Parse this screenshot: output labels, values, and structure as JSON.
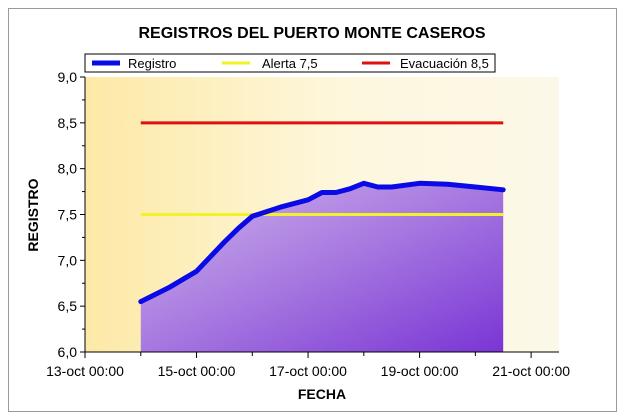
{
  "chart_data": {
    "type": "line",
    "title": "REGISTROS DEL PUERTO MONTE CASEROS",
    "xlabel": "FECHA",
    "ylabel": "REGISTRO",
    "x_ticks": [
      "13-oct 00:00",
      "15-oct 00:00",
      "17-oct 00:00",
      "19-oct 00:00",
      "21-oct 00:00"
    ],
    "y_ticks": [
      "6,0",
      "6,5",
      "7,0",
      "7,5",
      "8,0",
      "8,5",
      "9,0"
    ],
    "xlim": [
      "2023-10-13T00:00",
      "2023-10-21T12:00"
    ],
    "ylim": [
      6.0,
      9.0
    ],
    "grid": false,
    "legend_position": "top",
    "series": [
      {
        "name": "Registro",
        "color": "#0a0ae6",
        "x": [
          "2023-10-14T00:00",
          "2023-10-14T12:00",
          "2023-10-15T00:00",
          "2023-10-15T12:00",
          "2023-10-15T18:00",
          "2023-10-16T00:00",
          "2023-10-16T12:00",
          "2023-10-17T00:00",
          "2023-10-17T06:00",
          "2023-10-17T12:00",
          "2023-10-17T18:00",
          "2023-10-18T00:00",
          "2023-10-18T06:00",
          "2023-10-18T12:00",
          "2023-10-19T00:00",
          "2023-10-19T12:00",
          "2023-10-20T00:00",
          "2023-10-20T12:00"
        ],
        "values": [
          6.55,
          6.7,
          6.88,
          7.2,
          7.35,
          7.48,
          7.58,
          7.66,
          7.74,
          7.74,
          7.78,
          7.84,
          7.8,
          7.8,
          7.84,
          7.83,
          7.8,
          7.77
        ]
      },
      {
        "name": "Alerta 7,5",
        "color": "#f2f22a",
        "x": [
          "2023-10-14T00:00",
          "2023-10-20T12:00"
        ],
        "values": [
          7.5,
          7.5
        ]
      },
      {
        "name": "Evacuación 8,5",
        "color": "#dd1111",
        "x": [
          "2023-10-14T00:00",
          "2023-10-20T12:00"
        ],
        "values": [
          8.5,
          8.5
        ]
      }
    ]
  }
}
